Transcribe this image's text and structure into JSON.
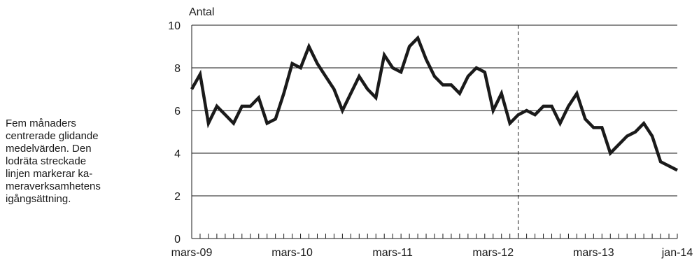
{
  "note": {
    "lines": [
      "Fem månaders",
      "centrerade glidande",
      "medelvärden. Den",
      "lodräta streckade",
      "linjen markerar ka-",
      "meraverksamhetens",
      "igångsättning."
    ]
  },
  "chart_data": {
    "type": "line",
    "title": "",
    "ylabel": "Antal",
    "xlabel": "",
    "ylim": [
      0,
      10
    ],
    "y_ticks": [
      0,
      2,
      4,
      6,
      8,
      10
    ],
    "x_tick_labels": [
      {
        "label": "mars-09",
        "index": 0
      },
      {
        "label": "mars-10",
        "index": 12
      },
      {
        "label": "mars-11",
        "index": 24
      },
      {
        "label": "mars-12",
        "index": 36
      },
      {
        "label": "mars-13",
        "index": 48
      },
      {
        "label": "jan-14",
        "index": 58
      }
    ],
    "x_start": "2009-03",
    "x_end": "2014-01",
    "grid": "horizontal",
    "vline_index": 39,
    "series": [
      {
        "color": "#1a1a1a",
        "values": [
          7.0,
          7.7,
          5.4,
          6.2,
          5.8,
          5.4,
          6.2,
          6.2,
          6.6,
          5.4,
          5.6,
          6.8,
          8.2,
          8.0,
          9.0,
          8.2,
          7.6,
          7.0,
          6.0,
          6.8,
          7.6,
          7.0,
          6.6,
          8.6,
          8.0,
          7.8,
          9.0,
          9.4,
          8.4,
          7.6,
          7.2,
          7.2,
          6.8,
          7.6,
          8.0,
          7.8,
          6.0,
          6.8,
          5.4,
          5.8,
          6.0,
          5.8,
          6.2,
          6.2,
          5.4,
          6.2,
          6.8,
          5.6,
          5.2,
          5.2,
          4.0,
          4.4,
          4.8,
          5.0,
          5.4,
          4.8,
          3.6,
          3.4,
          3.2
        ]
      }
    ]
  }
}
